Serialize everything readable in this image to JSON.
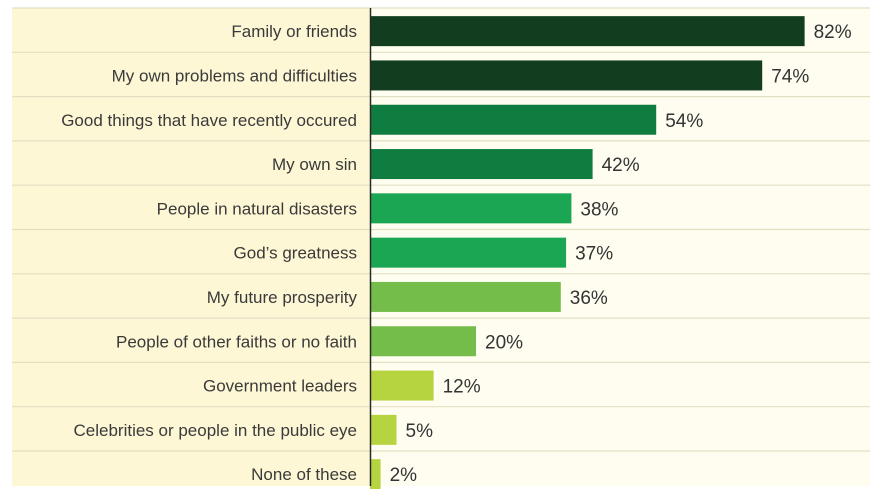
{
  "chart_data": {
    "type": "bar",
    "orientation": "horizontal",
    "categories": [
      "Family or friends",
      "My own problems and difficulties",
      "Good things that have recently occured",
      "My own sin",
      "People in natural disasters",
      "God’s greatness",
      "My future prosperity",
      "People of other faiths or no faith",
      "Government leaders",
      "Celebrities or people in the public eye",
      "None of these"
    ],
    "values": [
      82,
      74,
      54,
      42,
      38,
      37,
      36,
      20,
      12,
      5,
      2
    ],
    "value_labels": [
      "82%",
      "74%",
      "54%",
      "42%",
      "38%",
      "37%",
      "36%",
      "20%",
      "12%",
      "5%",
      "2%"
    ],
    "bar_colors": [
      "#123d1f",
      "#123d1f",
      "#0f7d3f",
      "#0f7d3f",
      "#1aa653",
      "#1aa653",
      "#74bd4a",
      "#74bd4a",
      "#b6d440",
      "#b6d440",
      "#b6d440"
    ],
    "xlim": [
      0,
      100
    ],
    "grid": false,
    "legend": "none"
  },
  "colors": {
    "label_column_bg": "#fdf7d5",
    "plot_bg": "#fffdf0",
    "row_divider": "#e3dfc3",
    "axis_line": "#2a2a2a"
  }
}
